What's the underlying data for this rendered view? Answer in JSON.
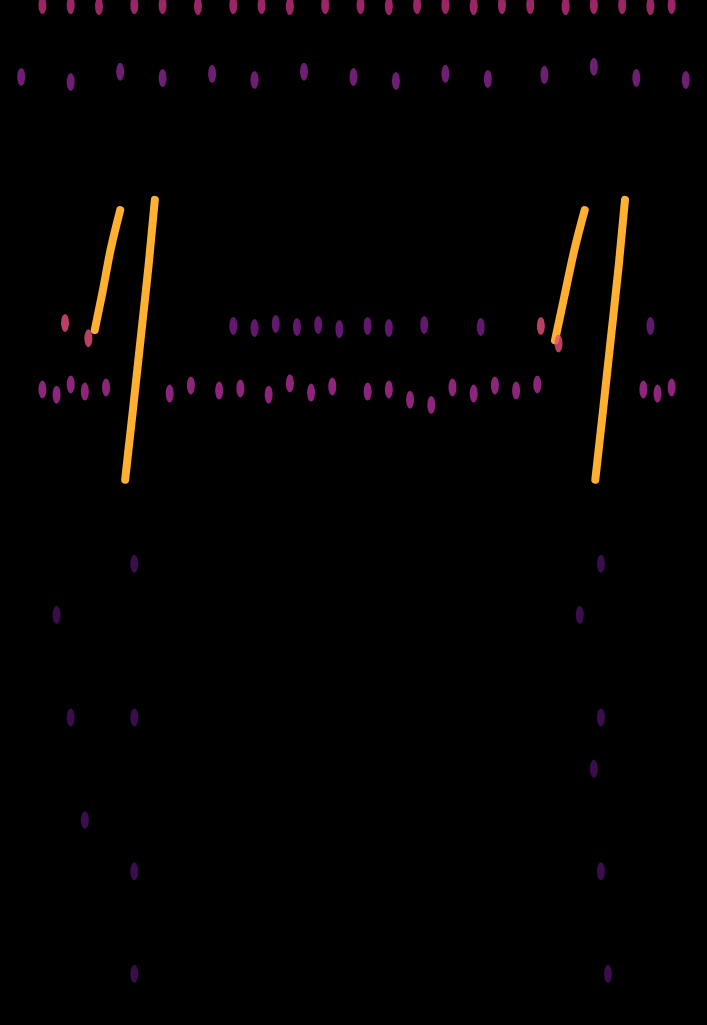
{
  "chart_data": {
    "type": "spectrogram",
    "tick_labels": false,
    "xlim": [
      0,
      100
    ],
    "ylim": [
      0,
      100
    ],
    "series": [
      {
        "type": "line",
        "color": "#ffb030",
        "x": [
          13.4,
          14.5,
          15.6,
          17.0
        ],
        "values": [
          67.8,
          71.5,
          75.5,
          79.5
        ]
      },
      {
        "type": "line",
        "color": "#ffb030",
        "x": [
          17.7,
          18.8,
          19.9,
          21.0,
          21.9
        ],
        "values": [
          53.2,
          60,
          67,
          74,
          80.5
        ]
      },
      {
        "type": "line",
        "color": "#ffb030",
        "x": [
          78.5,
          79.8,
          81.2,
          82.7
        ],
        "values": [
          66.8,
          71,
          75.5,
          79.5
        ]
      },
      {
        "type": "line",
        "color": "#ffb030",
        "x": [
          84.2,
          85.3,
          86.4,
          87.5,
          88.4
        ],
        "values": [
          53.2,
          60,
          67,
          74,
          80.5
        ]
      },
      {
        "type": "scatter",
        "color": "#e8507a",
        "x": [
          9.2,
          12.5,
          76.5,
          79.0
        ],
        "values": [
          68.5,
          67.0,
          68.2,
          66.5
        ]
      },
      {
        "type": "scatter",
        "color": "#b0309a",
        "x": [
          6,
          8,
          10,
          12,
          15,
          24,
          27,
          31,
          34,
          38,
          41,
          44,
          47,
          52,
          55,
          58,
          61,
          64,
          67,
          70,
          73,
          76,
          91,
          93,
          95
        ],
        "values": [
          62,
          61.5,
          62.5,
          61.8,
          62.2,
          61.6,
          62.4,
          61.9,
          62.1,
          61.5,
          62.6,
          61.7,
          62.3,
          61.8,
          62,
          61,
          60.5,
          62.2,
          61.6,
          62.4,
          61.9,
          62.5,
          62,
          61.6,
          62.2
        ]
      },
      {
        "type": "scatter",
        "color": "#7a1e8a",
        "x": [
          33,
          36,
          39,
          42,
          45,
          48,
          52,
          55,
          60,
          68,
          92
        ],
        "values": [
          68.2,
          68.0,
          68.4,
          68.1,
          68.3,
          67.9,
          68.2,
          68.0,
          68.3,
          68.1,
          68.2
        ]
      },
      {
        "type": "scatter",
        "color": "#c03080",
        "x": [
          6,
          10,
          14,
          19,
          23,
          28,
          33,
          37,
          41,
          46,
          51,
          55,
          59,
          63,
          67,
          71,
          75,
          80,
          84,
          88,
          92,
          95
        ],
        "values": [
          99.5,
          99.5,
          99.4,
          99.5,
          99.5,
          99.4,
          99.5,
          99.5,
          99.4,
          99.5,
          99.5,
          99.4,
          99.5,
          99.5,
          99.4,
          99.5,
          99.5,
          99.4,
          99.5,
          99.5,
          99.4,
          99.5
        ]
      },
      {
        "type": "scatter",
        "color": "#8a2590",
        "x": [
          3,
          10,
          17,
          23,
          30,
          36,
          43,
          50,
          56,
          63,
          69,
          77,
          84,
          90,
          97
        ],
        "values": [
          92.5,
          92,
          93,
          92.4,
          92.8,
          92.2,
          93,
          92.5,
          92.1,
          92.8,
          92.3,
          92.7,
          93.5,
          92.4,
          92.2
        ]
      },
      {
        "type": "scatter",
        "color": "#4a1060",
        "x": [
          8,
          10,
          12,
          19,
          19,
          19,
          19,
          82,
          84,
          85,
          85,
          85,
          86
        ],
        "values": [
          40,
          30,
          20,
          45,
          30,
          15,
          5,
          40,
          25,
          45,
          30,
          15,
          5
        ]
      }
    ]
  }
}
